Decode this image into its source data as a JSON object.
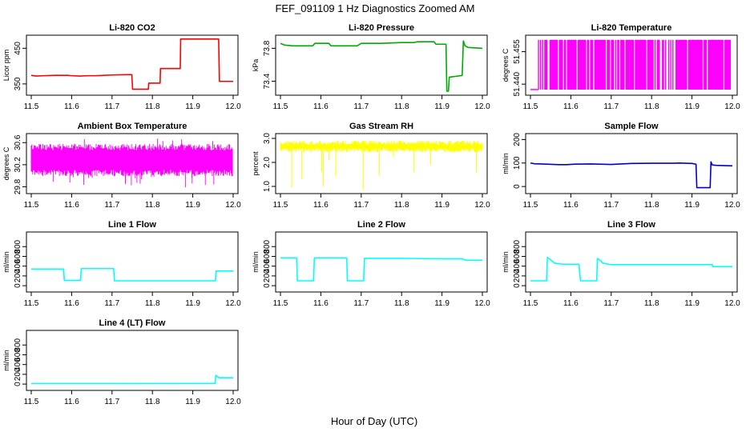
{
  "figure": {
    "title": "FEF_091109  1 Hz Diagnostics Zoomed AM",
    "xlabel": "Hour of Day (UTC)"
  },
  "chart_data": [
    {
      "type": "line",
      "title": "Li-820 CO2",
      "ylabel": "Licor ppm",
      "color": "#ff0000",
      "xlim": [
        11.5,
        12.0
      ],
      "ylim": [
        325,
        480
      ],
      "xticks": [
        11.5,
        11.6,
        11.7,
        11.8,
        11.9,
        12.0
      ],
      "xtick_labels": [
        "11.5",
        "11.6",
        "11.7",
        "11.8",
        "11.9",
        "12.0"
      ],
      "yticks": [
        350,
        450
      ],
      "ytick_labels": [
        "350",
        "450"
      ],
      "x": [
        11.5,
        11.512,
        11.53,
        11.56,
        11.59,
        11.6,
        11.62,
        11.64,
        11.66,
        11.68,
        11.7,
        11.74,
        11.749,
        11.751,
        11.79,
        11.791,
        11.819,
        11.82,
        11.869,
        11.87,
        11.949,
        11.95,
        11.964,
        11.966,
        12.0
      ],
      "y": [
        374,
        372,
        373,
        374,
        374,
        373,
        372,
        373,
        373,
        374,
        375,
        376,
        376,
        335,
        335,
        352,
        352,
        393,
        393,
        476,
        476,
        476,
        476,
        357,
        357
      ]
    },
    {
      "type": "line",
      "title": "Li-820 Pressure",
      "ylabel": "kPa",
      "color": "#00aa00",
      "xlim": [
        11.5,
        12.0
      ],
      "ylim": [
        73.26,
        73.93
      ],
      "xticks": [
        11.5,
        11.6,
        11.7,
        11.8,
        11.9,
        12.0
      ],
      "xtick_labels": [
        "11.5",
        "11.6",
        "11.7",
        "11.8",
        "11.9",
        "12.0"
      ],
      "yticks": [
        73.4,
        73.8
      ],
      "ytick_labels": [
        "73.4",
        "73.8"
      ],
      "x": [
        11.5,
        11.51,
        11.53,
        11.58,
        11.585,
        11.62,
        11.625,
        11.69,
        11.7,
        11.75,
        11.8,
        11.83,
        11.84,
        11.88,
        11.885,
        11.91,
        11.912,
        11.916,
        11.918,
        11.95,
        11.953,
        11.957,
        11.965,
        12.0
      ],
      "y": [
        73.86,
        73.84,
        73.83,
        73.83,
        73.86,
        73.86,
        73.83,
        73.83,
        73.86,
        73.86,
        73.87,
        73.87,
        73.88,
        73.88,
        73.85,
        73.85,
        73.28,
        73.28,
        73.45,
        73.47,
        73.89,
        73.83,
        73.81,
        73.8
      ]
    },
    {
      "type": "line",
      "title": "Li-820 Temperature",
      "ylabel": "degrees C",
      "color": "#ff00ff",
      "xlim": [
        11.5,
        12.0
      ],
      "ylim": [
        51.436,
        51.4615
      ],
      "xticks": [
        11.5,
        11.6,
        11.7,
        11.8,
        11.9,
        12.0
      ],
      "xtick_labels": [
        "11.5",
        "11.6",
        "11.7",
        "11.8",
        "11.9",
        "12.0"
      ],
      "yticks": [
        51.44,
        51.455
      ],
      "ytick_labels": [
        "51.440",
        "51.455"
      ],
      "levels": [
        51.4375,
        51.4605
      ],
      "x": [],
      "y": []
    },
    {
      "type": "line",
      "title": "Ambient Box Temperature",
      "ylabel": "degrees C",
      "color": "#ff00ff",
      "xlim": [
        11.5,
        12.0
      ],
      "ylim": [
        29.72,
        30.72
      ],
      "xticks": [
        11.5,
        11.6,
        11.7,
        11.8,
        11.9,
        12.0
      ],
      "xtick_labels": [
        "11.5",
        "11.6",
        "11.7",
        "11.8",
        "11.9",
        "12.0"
      ],
      "yticks": [
        29.8,
        30.2,
        30.6
      ],
      "ytick_labels": [
        "29.8",
        "30.2",
        "30.6"
      ],
      "x": [],
      "y": []
    },
    {
      "type": "line",
      "title": "Gas Stream RH",
      "ylabel": "percent",
      "color": "#ffff00",
      "xlim": [
        11.5,
        12.0
      ],
      "ylim": [
        0.8,
        3.1
      ],
      "xticks": [
        11.5,
        11.6,
        11.7,
        11.8,
        11.9,
        12.0
      ],
      "xtick_labels": [
        "11.5",
        "11.6",
        "11.7",
        "11.8",
        "11.9",
        "12.0"
      ],
      "yticks": [
        1.0,
        2.0,
        3.0
      ],
      "ytick_labels": [
        "1.0",
        "2.0",
        "3.0"
      ],
      "x": [],
      "y": []
    },
    {
      "type": "line",
      "title": "Sample Flow",
      "ylabel": "ml/min",
      "color": "#0000cc",
      "xlim": [
        11.5,
        12.0
      ],
      "ylim": [
        -20,
        215
      ],
      "xticks": [
        11.5,
        11.6,
        11.7,
        11.8,
        11.9,
        12.0
      ],
      "xtick_labels": [
        "11.5",
        "11.6",
        "11.7",
        "11.8",
        "11.9",
        "12.0"
      ],
      "yticks": [
        0,
        100,
        200
      ],
      "ytick_labels": [
        "0",
        "100",
        "200"
      ],
      "x": [
        11.5,
        11.51,
        11.54,
        11.57,
        11.59,
        11.61,
        11.65,
        11.7,
        11.75,
        11.8,
        11.85,
        11.87,
        11.9,
        11.91,
        11.912,
        11.945,
        11.947,
        11.95,
        11.96,
        12.0
      ],
      "y": [
        100,
        97,
        95,
        93,
        93,
        95,
        96,
        94,
        98,
        99,
        99,
        100,
        98,
        95,
        -5,
        -5,
        105,
        92,
        90,
        88
      ]
    },
    {
      "type": "line",
      "title": "Line 1 Flow",
      "ylabel": "ml/min",
      "color": "#00ffff",
      "xlim": [
        11.5,
        12.0
      ],
      "ylim": [
        -80,
        1050
      ],
      "xticks": [
        11.5,
        11.6,
        11.7,
        11.8,
        11.9,
        12.0
      ],
      "xtick_labels": [
        "11.5",
        "11.6",
        "11.7",
        "11.8",
        "11.9",
        "12.0"
      ],
      "yticks": [
        0,
        200,
        400,
        600,
        800
      ],
      "ytick_labels": [
        "0",
        "200",
        "400",
        "600",
        "800"
      ],
      "x": [
        11.5,
        11.58,
        11.582,
        11.622,
        11.624,
        11.704,
        11.706,
        11.956,
        11.958,
        12.0
      ],
      "y": [
        340,
        340,
        110,
        110,
        350,
        350,
        100,
        100,
        300,
        300
      ]
    },
    {
      "type": "line",
      "title": "Line 2 Flow",
      "ylabel": "ml/min",
      "color": "#00ffff",
      "xlim": [
        11.5,
        12.0
      ],
      "ylim": [
        -80,
        1050
      ],
      "xticks": [
        11.5,
        11.6,
        11.7,
        11.8,
        11.9,
        12.0
      ],
      "xtick_labels": [
        "11.5",
        "11.6",
        "11.7",
        "11.8",
        "11.9",
        "12.0"
      ],
      "yticks": [
        0,
        200,
        400,
        600,
        800
      ],
      "ytick_labels": [
        "0",
        "200",
        "400",
        "600",
        "800"
      ],
      "x": [
        11.5,
        11.54,
        11.542,
        11.582,
        11.584,
        11.664,
        11.666,
        11.706,
        11.708,
        11.8,
        11.9,
        11.95,
        11.96,
        12.0
      ],
      "y": [
        570,
        570,
        100,
        100,
        570,
        570,
        100,
        100,
        560,
        560,
        550,
        550,
        520,
        520
      ]
    },
    {
      "type": "line",
      "title": "Line 3 Flow",
      "ylabel": "ml/min",
      "color": "#00ffff",
      "xlim": [
        11.5,
        12.0
      ],
      "ylim": [
        -80,
        1050
      ],
      "xticks": [
        11.5,
        11.6,
        11.7,
        11.8,
        11.9,
        12.0
      ],
      "xtick_labels": [
        "11.5",
        "11.6",
        "11.7",
        "11.8",
        "11.9",
        "12.0"
      ],
      "yticks": [
        0,
        200,
        400,
        600,
        800
      ],
      "ytick_labels": [
        "0",
        "200",
        "400",
        "600",
        "800"
      ],
      "x": [
        11.5,
        11.54,
        11.542,
        11.56,
        11.58,
        11.62,
        11.624,
        11.664,
        11.666,
        11.68,
        11.7,
        11.8,
        11.9,
        11.95,
        11.952,
        12.0
      ],
      "y": [
        100,
        100,
        580,
        460,
        440,
        440,
        100,
        100,
        560,
        460,
        430,
        430,
        430,
        430,
        390,
        390
      ]
    },
    {
      "type": "line",
      "title": "Line 4 (LT) Flow",
      "ylabel": "ml/min",
      "color": "#00ffff",
      "xlim": [
        11.5,
        12.0
      ],
      "ylim": [
        -80,
        1050
      ],
      "xticks": [
        11.5,
        11.6,
        11.7,
        11.8,
        11.9,
        12.0
      ],
      "xtick_labels": [
        "11.5",
        "11.6",
        "11.7",
        "11.8",
        "11.9",
        "12.0"
      ],
      "yticks": [
        0,
        200,
        400,
        600,
        800
      ],
      "ytick_labels": [
        "0",
        "200",
        "400",
        "600",
        "800"
      ],
      "x": [
        11.5,
        11.7,
        11.9,
        11.955,
        11.957,
        11.965,
        12.0
      ],
      "y": [
        10,
        10,
        12,
        12,
        180,
        130,
        130
      ]
    }
  ]
}
